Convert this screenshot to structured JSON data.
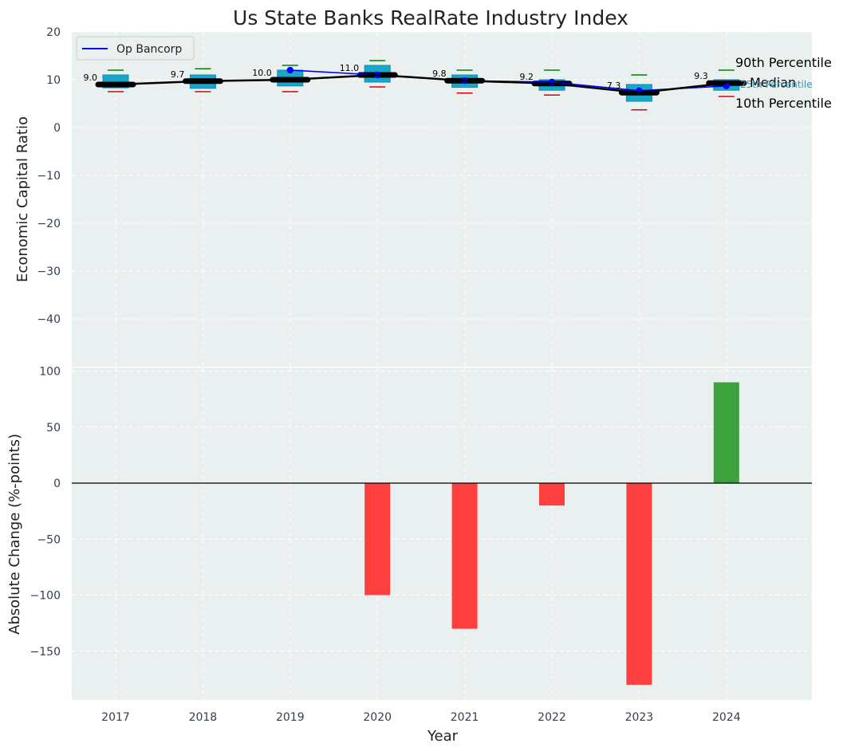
{
  "chart_data": [
    {
      "type": "boxplot",
      "title": "Us State Banks RealRate Industry Index",
      "ylabel": "Economic Capital Ratio",
      "ylim": [
        -50,
        20
      ],
      "yticks": [
        -40,
        -30,
        -20,
        -10,
        0,
        10,
        20
      ],
      "categories": [
        "2017",
        "2018",
        "2019",
        "2020",
        "2021",
        "2022",
        "2023",
        "2024"
      ],
      "p10": [
        7.5,
        7.5,
        7.5,
        8.5,
        7.2,
        6.8,
        3.7,
        6.5
      ],
      "p25": [
        8.3,
        8.2,
        8.7,
        9.5,
        8.4,
        7.8,
        5.5,
        7.8
      ],
      "median": [
        9.0,
        9.7,
        10.0,
        11.0,
        9.8,
        9.2,
        7.3,
        9.3
      ],
      "p75": [
        11.0,
        11.0,
        12.0,
        13.0,
        11.0,
        10.0,
        9.0,
        10.0
      ],
      "p90": [
        12.0,
        12.3,
        13.0,
        14.0,
        12.0,
        12.0,
        11.0,
        12.0
      ],
      "median_labels": [
        "9.0",
        "9.7",
        "10.0",
        "11.0",
        "9.8",
        "9.2",
        "7.3",
        "9.3"
      ],
      "company": {
        "name": "Op Bancorp",
        "values": [
          null,
          null,
          12.0,
          11.0,
          9.8,
          9.5,
          7.7,
          8.7
        ]
      },
      "legend": {
        "location": "top-left",
        "entries": [
          "Op Bancorp"
        ]
      },
      "annotations": {
        "p90": "90th Percentile",
        "median": "Median",
        "p25": "25th Percentile",
        "p10": "10th Percentile"
      },
      "grid": true
    },
    {
      "type": "bar",
      "ylabel": "Absolute Change (%-points)",
      "xlabel": "Year",
      "ylim": [
        -190,
        105
      ],
      "yticks": [
        -150,
        -100,
        -50,
        0,
        50,
        100
      ],
      "categories": [
        "2017",
        "2018",
        "2019",
        "2020",
        "2021",
        "2022",
        "2023",
        "2024"
      ],
      "values": [
        0,
        0,
        0,
        -100,
        -130,
        -20,
        -180,
        90
      ],
      "grid": true
    }
  ],
  "colors": {
    "background": "#eaeff0",
    "box": "#1aa6c8",
    "box_edge": "#0a8fb0",
    "median": "#000000",
    "p90_whisker": "#008000",
    "p10_whisker": "#e00000",
    "company": "#0000ff",
    "positive": "#2e9a2e",
    "negative": "#ff3030"
  }
}
